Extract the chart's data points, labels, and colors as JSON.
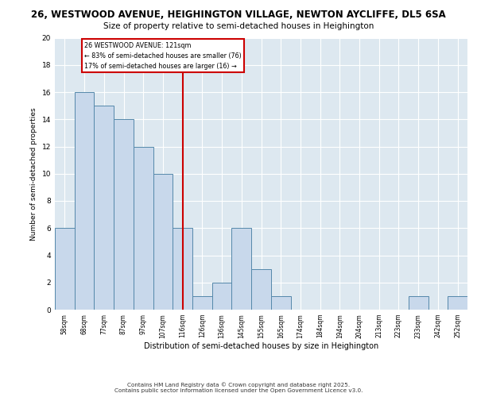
{
  "title_line1": "26, WESTWOOD AVENUE, HEIGHINGTON VILLAGE, NEWTON AYCLIFFE, DL5 6SA",
  "title_line2": "Size of property relative to semi-detached houses in Heighington",
  "xlabel": "Distribution of semi-detached houses by size in Heighington",
  "ylabel": "Number of semi-detached properties",
  "bin_labels": [
    "58sqm",
    "68sqm",
    "77sqm",
    "87sqm",
    "97sqm",
    "107sqm",
    "116sqm",
    "126sqm",
    "136sqm",
    "145sqm",
    "155sqm",
    "165sqm",
    "174sqm",
    "184sqm",
    "194sqm",
    "204sqm",
    "213sqm",
    "223sqm",
    "233sqm",
    "242sqm",
    "252sqm"
  ],
  "counts": [
    6,
    16,
    15,
    14,
    12,
    10,
    6,
    1,
    2,
    6,
    3,
    1,
    0,
    0,
    0,
    0,
    0,
    0,
    1,
    0,
    1
  ],
  "bar_color": "#c8d8eb",
  "bar_edge_color": "#5588aa",
  "smaller_pct": 83,
  "smaller_count": 76,
  "larger_pct": 17,
  "larger_count": 16,
  "vline_color": "#cc0000",
  "vline_x": 6.5,
  "annotation_box_color": "#cc0000",
  "ylim": [
    0,
    20
  ],
  "yticks": [
    0,
    2,
    4,
    6,
    8,
    10,
    12,
    14,
    16,
    18,
    20
  ],
  "background_color": "#dde8f0",
  "grid_color": "#ffffff",
  "footer_line1": "Contains HM Land Registry data © Crown copyright and database right 2025.",
  "footer_line2": "Contains public sector information licensed under the Open Government Licence v3.0."
}
